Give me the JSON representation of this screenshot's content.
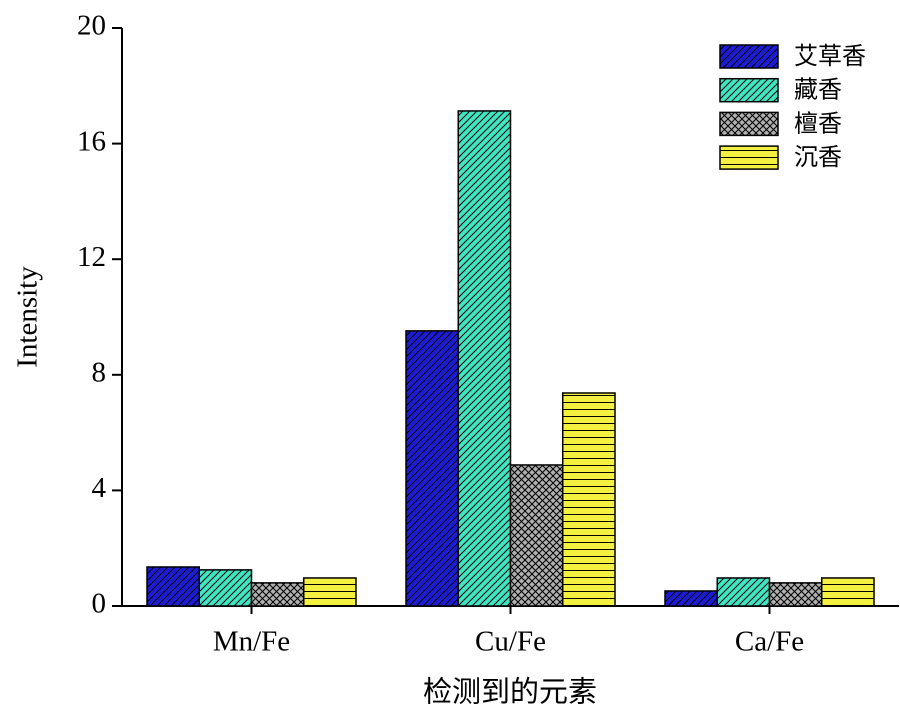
{
  "chart_data": {
    "type": "bar",
    "x_label": "检测到的元素",
    "y_label": "Intensity",
    "categories": [
      "Mn/Fe",
      "Cu/Fe",
      "Ca/Fe"
    ],
    "series": [
      {
        "name": "艾草香",
        "color": "#1c1cd8",
        "hatch": "diagonal",
        "values": [
          1.35,
          9.52,
          0.52
        ]
      },
      {
        "name": "藏香",
        "color": "#3fe6c4",
        "hatch": "diagonal",
        "values": [
          1.25,
          17.13,
          0.97
        ]
      },
      {
        "name": "檀香",
        "color": "#b0b0b0",
        "hatch": "crosshatch",
        "values": [
          0.8,
          4.88,
          0.8
        ]
      },
      {
        "name": "沉香",
        "color": "#f4f040",
        "hatch": "horizontal",
        "values": [
          0.97,
          7.37,
          0.97
        ]
      }
    ],
    "ylim": [
      0,
      20
    ],
    "yticks": [
      0,
      4,
      8,
      12,
      16,
      20
    ],
    "grid": false,
    "legend": "upper right"
  }
}
